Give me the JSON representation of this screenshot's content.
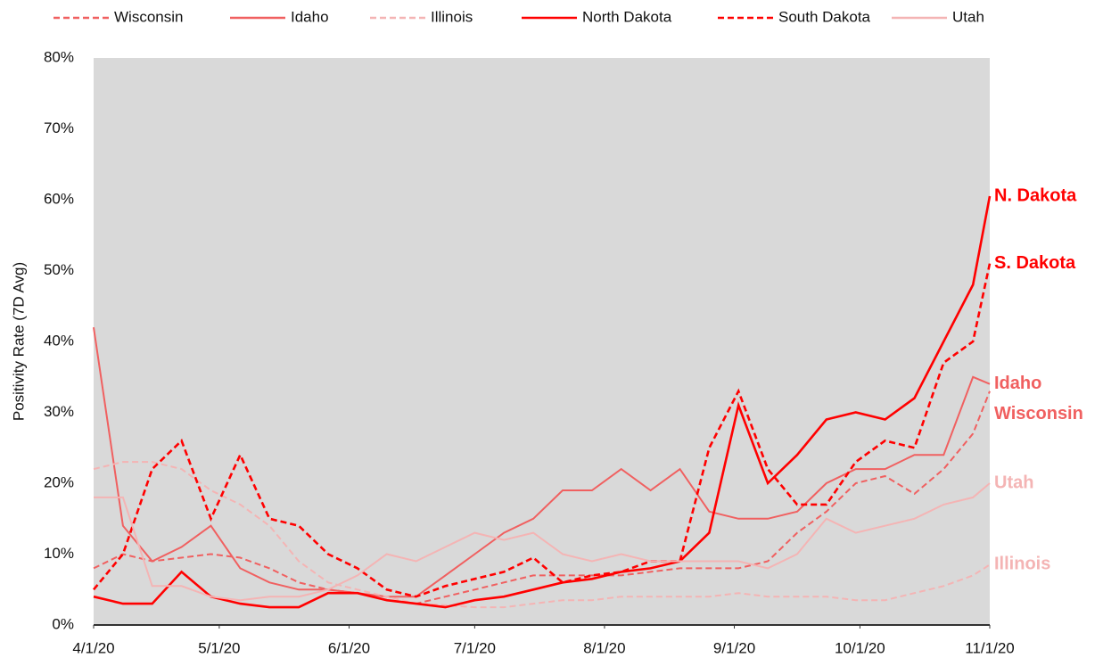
{
  "chart_data": {
    "type": "line",
    "y_label": "Positivity Rate (7D Avg)",
    "x": [
      "4/1/20",
      "4/8/20",
      "4/15/20",
      "4/22/20",
      "4/29/20",
      "5/6/20",
      "5/13/20",
      "5/20/20",
      "5/27/20",
      "6/3/20",
      "6/10/20",
      "6/17/20",
      "6/24/20",
      "7/1/20",
      "7/8/20",
      "7/15/20",
      "7/22/20",
      "7/29/20",
      "8/5/20",
      "8/12/20",
      "8/19/20",
      "8/26/20",
      "9/2/20",
      "9/9/20",
      "9/16/20",
      "9/23/20",
      "9/30/20",
      "10/7/20",
      "10/14/20",
      "10/21/20",
      "10/28/20",
      "11/1/20"
    ],
    "xlim": [
      "4/1/20",
      "11/1/20"
    ],
    "xticks": [
      "4/1/20",
      "5/1/20",
      "6/1/20",
      "7/1/20",
      "8/1/20",
      "9/1/20",
      "10/1/20",
      "11/1/20"
    ],
    "ylim": [
      0,
      80
    ],
    "yticks": [
      {
        "value": 0,
        "label": "0%"
      },
      {
        "value": 10,
        "label": "10%"
      },
      {
        "value": 20,
        "label": "20%"
      },
      {
        "value": 30,
        "label": "30%"
      },
      {
        "value": 40,
        "label": "40%"
      },
      {
        "value": 50,
        "label": "50%"
      },
      {
        "value": 60,
        "label": "60%"
      },
      {
        "value": 70,
        "label": "70%"
      },
      {
        "value": 80,
        "label": "80%"
      }
    ],
    "legend": "top",
    "series": [
      {
        "name": "Wisconsin",
        "label": "Wisconsin",
        "color": "#f06060",
        "dashed": true,
        "values": [
          8,
          10,
          9,
          9.5,
          10,
          9.5,
          8,
          6,
          5,
          4.5,
          3.5,
          3,
          4,
          5,
          6,
          7,
          7,
          7,
          7,
          7.5,
          8,
          8,
          8,
          9,
          13,
          16,
          20,
          21,
          18.5,
          22,
          27,
          33
        ]
      },
      {
        "name": "Idaho",
        "label": "Idaho",
        "color": "#f06060",
        "dashed": false,
        "values": [
          42,
          14,
          9,
          11,
          14,
          8,
          6,
          5,
          5,
          4.5,
          4,
          4,
          7,
          10,
          13,
          15,
          19,
          19,
          22,
          19,
          22,
          16,
          15,
          15,
          16,
          20,
          22,
          22,
          24,
          24,
          35,
          34
        ]
      },
      {
        "name": "Illinois",
        "label": "Illinois",
        "color": "#f4b4b4",
        "dashed": true,
        "values": [
          22,
          23,
          23,
          22,
          19,
          17,
          14,
          9,
          6,
          5,
          4,
          3,
          2.8,
          2.5,
          2.5,
          3,
          3.5,
          3.5,
          4,
          4,
          4,
          4,
          4.5,
          4,
          4,
          4,
          3.5,
          3.5,
          4.5,
          5.5,
          7,
          8.5
        ]
      },
      {
        "name": "North Dakota",
        "label": "N. Dakota",
        "color": "#ff0000",
        "dashed": false,
        "values": [
          4,
          3,
          3,
          7.5,
          4,
          3,
          2.5,
          2.5,
          4.5,
          4.5,
          3.5,
          3,
          2.5,
          3.5,
          4,
          5,
          6,
          6.5,
          7.5,
          8,
          9,
          13,
          31,
          20,
          24,
          29,
          30,
          29,
          32,
          40,
          48,
          60.5
        ]
      },
      {
        "name": "South Dakota",
        "label": "S. Dakota",
        "color": "#ff0000",
        "dashed": true,
        "values": [
          5,
          10,
          22,
          26,
          15,
          24,
          15,
          14,
          10,
          8,
          5,
          4,
          5.5,
          6.5,
          7.5,
          9.5,
          6,
          7,
          7.5,
          9,
          9,
          25,
          33,
          22,
          17,
          17,
          23,
          26,
          25,
          37,
          40,
          51
        ]
      },
      {
        "name": "Utah",
        "label": "Utah",
        "color": "#f4b4b4",
        "dashed": false,
        "values": [
          18,
          18,
          5.5,
          5.5,
          4,
          3.5,
          4,
          4,
          5,
          7,
          10,
          9,
          11,
          13,
          12,
          13,
          10,
          9,
          10,
          9,
          9,
          9,
          9,
          8,
          10,
          15,
          13,
          14,
          15,
          17,
          18,
          20
        ]
      }
    ]
  }
}
